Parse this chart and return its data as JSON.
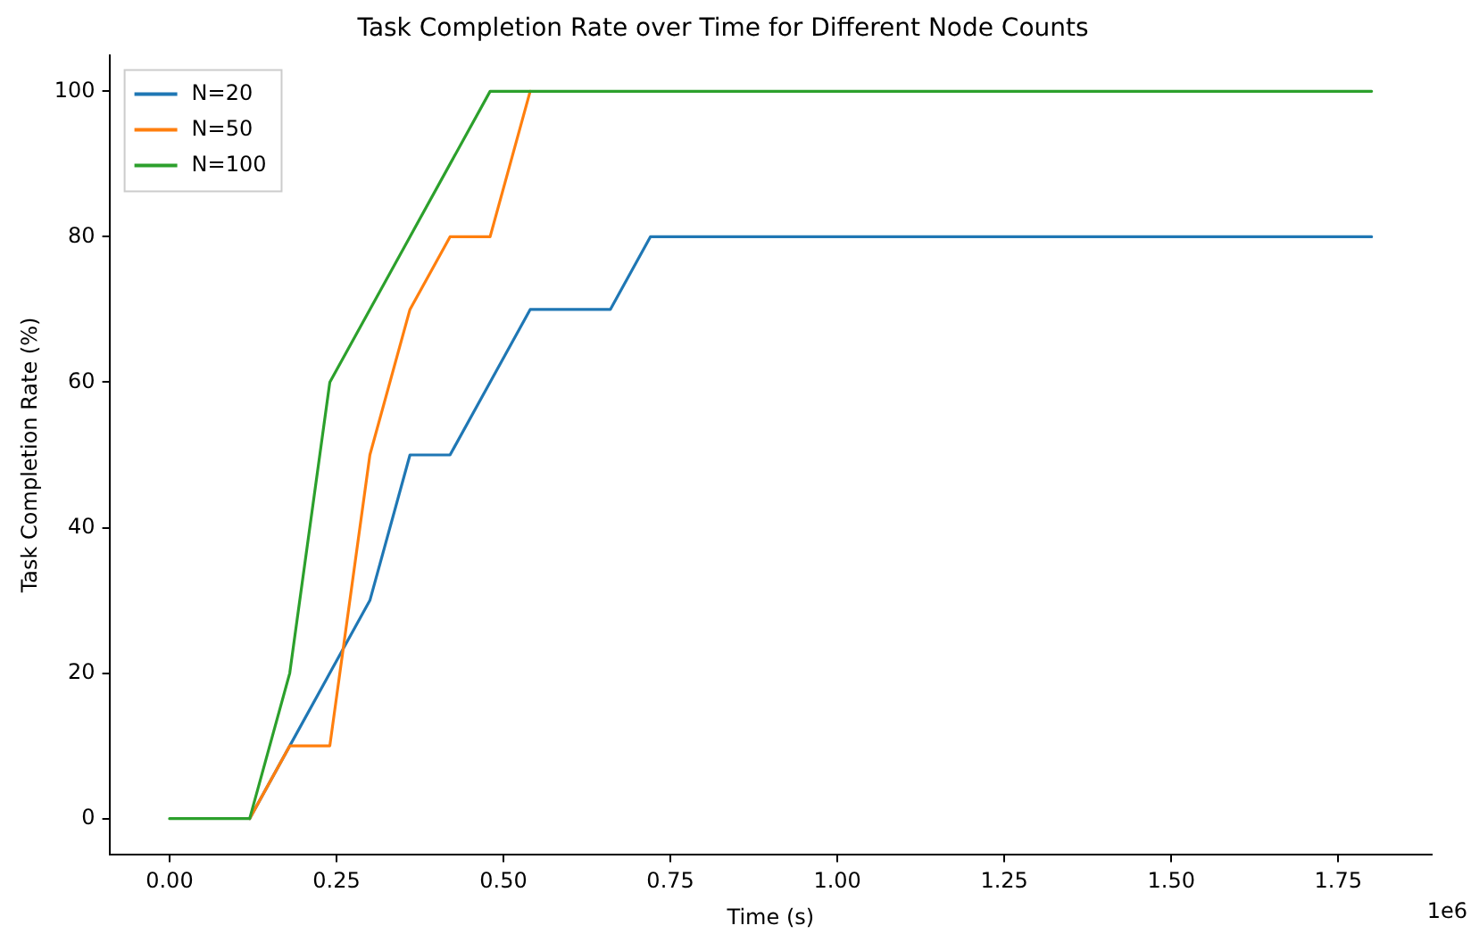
{
  "chart_data": {
    "type": "line",
    "title": "Task Completion Rate over Time for Different Node Counts",
    "xlabel": "Time (s)",
    "ylabel": "Task Completion Rate (%)",
    "annotations": [
      "1e6"
    ],
    "x": [
      0,
      0.06,
      0.12,
      0.18,
      0.24,
      0.3,
      0.36,
      0.42,
      0.48,
      0.54,
      0.6,
      0.66,
      0.72,
      0.78,
      0.84,
      0.9,
      0.96,
      1.02,
      1.08,
      1.14,
      1.2,
      1.26,
      1.32,
      1.38,
      1.44,
      1.5,
      1.56,
      1.62,
      1.68,
      1.74,
      1.8
    ],
    "series": [
      {
        "name": "N=20",
        "color": "#1f77b4",
        "values": [
          null,
          null,
          0,
          10,
          20,
          30,
          50,
          50,
          60,
          70,
          70,
          70,
          80,
          80,
          80,
          80,
          80,
          80,
          80,
          80,
          80,
          80,
          80,
          80,
          80,
          80,
          80,
          80,
          80,
          80,
          80
        ]
      },
      {
        "name": "N=50",
        "color": "#ff7f0e",
        "values": [
          null,
          null,
          0,
          10,
          10,
          50,
          70,
          80,
          80,
          100,
          null,
          null,
          null,
          null,
          null,
          null,
          null,
          null,
          null,
          null,
          null,
          null,
          null,
          null,
          null,
          null,
          null,
          null,
          null,
          null,
          null
        ]
      },
      {
        "name": "N=100",
        "color": "#2ca02c",
        "values": [
          0,
          0,
          0,
          20,
          60,
          70,
          80,
          90,
          100,
          100,
          100,
          100,
          100,
          100,
          100,
          100,
          100,
          100,
          100,
          100,
          100,
          100,
          100,
          100,
          100,
          100,
          100,
          100,
          100,
          100,
          100
        ]
      }
    ],
    "xlim": [
      -0.09,
      1.89
    ],
    "ylim": [
      -5,
      105
    ],
    "xticks": [
      {
        "value": 0,
        "label": "0.00"
      },
      {
        "value": 0.25,
        "label": "0.25"
      },
      {
        "value": 0.5,
        "label": "0.50"
      },
      {
        "value": 0.75,
        "label": "0.75"
      },
      {
        "value": 1,
        "label": "1.00"
      },
      {
        "value": 1.25,
        "label": "1.25"
      },
      {
        "value": 1.5,
        "label": "1.50"
      },
      {
        "value": 1.75,
        "label": "1.75"
      }
    ],
    "yticks": [
      0,
      20,
      40,
      60,
      80,
      100
    ],
    "grid": false,
    "legend": "top left",
    "marker": "none",
    "line_style": "solid"
  }
}
